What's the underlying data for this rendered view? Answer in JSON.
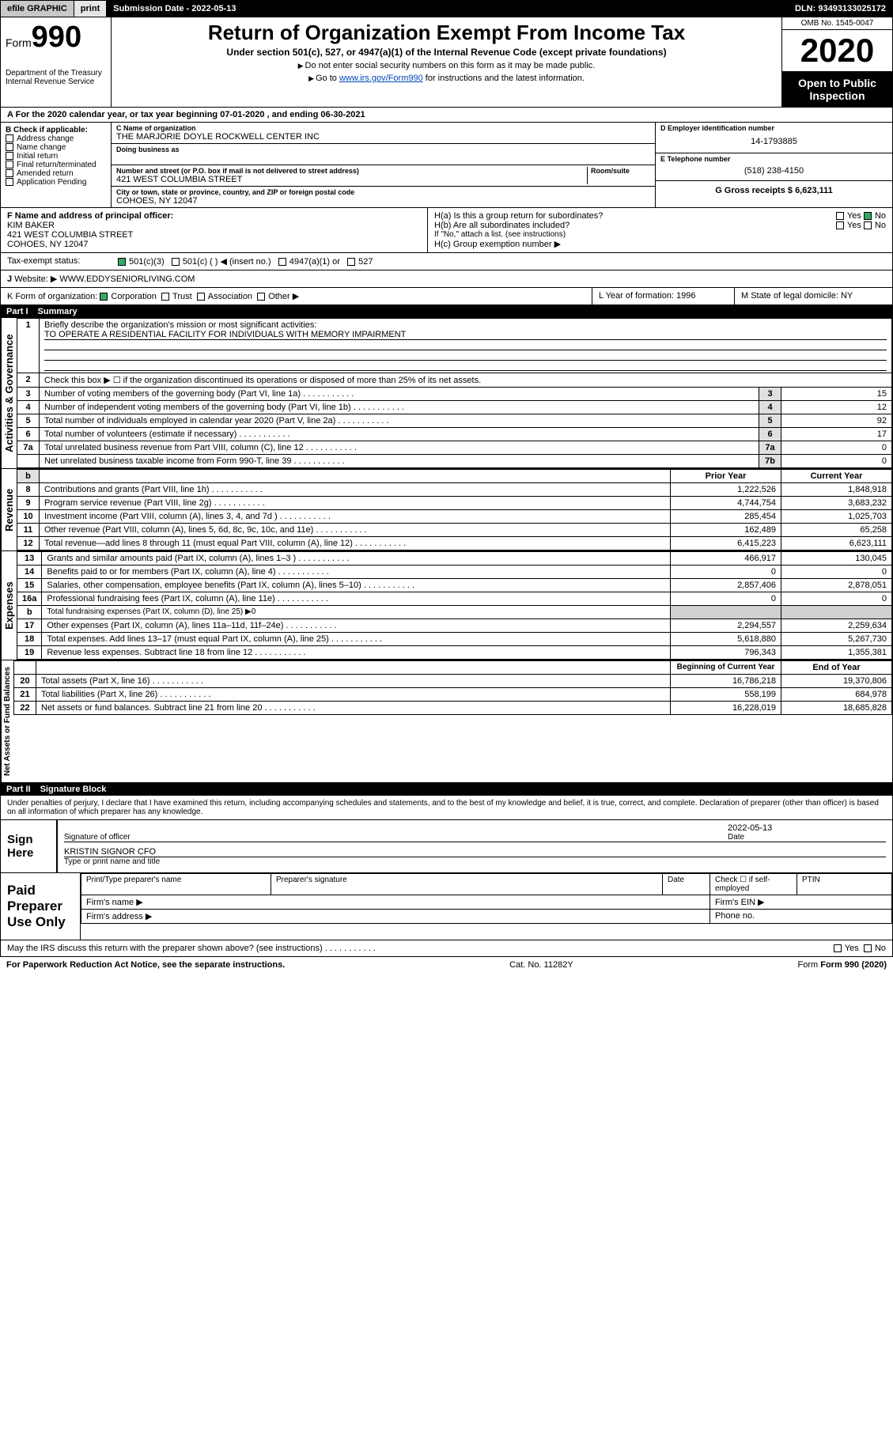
{
  "topbar": {
    "efile": "efile GRAPHIC",
    "print": "print",
    "subdate_label": "Submission Date - 2022-05-13",
    "dln": "DLN: 93493133025172"
  },
  "header": {
    "form_label": "Form",
    "form_number": "990",
    "dept": "Department of the Treasury",
    "irs": "Internal Revenue Service",
    "title": "Return of Organization Exempt From Income Tax",
    "subtitle": "Under section 501(c), 527, or 4947(a)(1) of the Internal Revenue Code (except private foundations)",
    "note1": "Do not enter social security numbers on this form as it may be made public.",
    "note2_pre": "Go to ",
    "note2_link": "www.irs.gov/Form990",
    "note2_post": " for instructions and the latest information.",
    "omb": "OMB No. 1545-0047",
    "year": "2020",
    "open_public": "Open to Public Inspection"
  },
  "period": {
    "text": "For the 2020 calendar year, or tax year beginning 07-01-2020   , and ending 06-30-2021"
  },
  "box_b": {
    "title": "B Check if applicable:",
    "items": [
      "Address change",
      "Name change",
      "Initial return",
      "Final return/terminated",
      "Amended return",
      "Application Pending"
    ]
  },
  "box_c": {
    "name_lbl": "C Name of organization",
    "name": "THE MARJORIE DOYLE ROCKWELL CENTER INC",
    "dba_lbl": "Doing business as",
    "addr_lbl": "Number and street (or P.O. box if mail is not delivered to street address)",
    "room_lbl": "Room/suite",
    "addr": "421 WEST COLUMBIA STREET",
    "city_lbl": "City or town, state or province, country, and ZIP or foreign postal code",
    "city": "COHOES, NY  12047"
  },
  "box_d": {
    "lbl": "D Employer identification number",
    "val": "14-1793885"
  },
  "box_e": {
    "lbl": "E Telephone number",
    "val": "(518) 238-4150"
  },
  "box_g": {
    "lbl": "G Gross receipts $ 6,623,111"
  },
  "box_f": {
    "lbl": "F  Name and address of principal officer:",
    "name": "KIM BAKER",
    "addr1": "421 WEST COLUMBIA STREET",
    "addr2": "COHOES, NY  12047"
  },
  "box_h": {
    "a": "H(a)  Is this a group return for subordinates?",
    "a_yes": "Yes",
    "a_no": "No",
    "b": "H(b)  Are all subordinates included?",
    "b_yes": "Yes",
    "b_no": "No",
    "b_note": "If \"No,\" attach a list. (see instructions)",
    "c": "H(c)  Group exemption number ▶"
  },
  "box_i": {
    "lbl": "Tax-exempt status:",
    "opts": [
      "501(c)(3)",
      "501(c) (   ) ◀ (insert no.)",
      "4947(a)(1) or",
      "527"
    ]
  },
  "box_j": {
    "lbl": "Website: ▶",
    "val": " WWW.EDDYSENIORLIVING.COM"
  },
  "box_k": {
    "lbl": "K Form of organization:",
    "opts": [
      "Corporation",
      "Trust",
      "Association",
      "Other ▶"
    ]
  },
  "box_l": {
    "lbl": "L Year of formation: 1996"
  },
  "box_m": {
    "lbl": "M State of legal domicile: NY"
  },
  "partI": {
    "label": "Part I",
    "title": "Summary"
  },
  "summary": {
    "q1": "Briefly describe the organization's mission or most significant activities:",
    "q1a": "TO OPERATE A RESIDENTIAL FACILITY FOR INDIVIDUALS WITH MEMORY IMPAIRMENT",
    "q2": "Check this box ▶ ☐  if the organization discontinued its operations or disposed of more than 25% of its net assets.",
    "rows_gov": [
      {
        "n": "3",
        "t": "Number of voting members of the governing body (Part VI, line 1a)",
        "b": "3",
        "v": "15"
      },
      {
        "n": "4",
        "t": "Number of independent voting members of the governing body (Part VI, line 1b)",
        "b": "4",
        "v": "12"
      },
      {
        "n": "5",
        "t": "Total number of individuals employed in calendar year 2020 (Part V, line 2a)",
        "b": "5",
        "v": "92"
      },
      {
        "n": "6",
        "t": "Total number of volunteers (estimate if necessary)",
        "b": "6",
        "v": "17"
      },
      {
        "n": "7a",
        "t": "Total unrelated business revenue from Part VIII, column (C), line 12",
        "b": "7a",
        "v": "0"
      },
      {
        "n": "",
        "t": "Net unrelated business taxable income from Form 990-T, line 39",
        "b": "7b",
        "v": "0"
      }
    ],
    "hdr_prior": "Prior Year",
    "hdr_curr": "Current Year",
    "rows_rev": [
      {
        "n": "8",
        "t": "Contributions and grants (Part VIII, line 1h)",
        "p": "1,222,526",
        "c": "1,848,918"
      },
      {
        "n": "9",
        "t": "Program service revenue (Part VIII, line 2g)",
        "p": "4,744,754",
        "c": "3,683,232"
      },
      {
        "n": "10",
        "t": "Investment income (Part VIII, column (A), lines 3, 4, and 7d )",
        "p": "285,454",
        "c": "1,025,703"
      },
      {
        "n": "11",
        "t": "Other revenue (Part VIII, column (A), lines 5, 6d, 8c, 9c, 10c, and 11e)",
        "p": "162,489",
        "c": "65,258"
      },
      {
        "n": "12",
        "t": "Total revenue—add lines 8 through 11 (must equal Part VIII, column (A), line 12)",
        "p": "6,415,223",
        "c": "6,623,111"
      }
    ],
    "rows_exp": [
      {
        "n": "13",
        "t": "Grants and similar amounts paid (Part IX, column (A), lines 1–3 )",
        "p": "466,917",
        "c": "130,045"
      },
      {
        "n": "14",
        "t": "Benefits paid to or for members (Part IX, column (A), line 4)",
        "p": "0",
        "c": "0"
      },
      {
        "n": "15",
        "t": "Salaries, other compensation, employee benefits (Part IX, column (A), lines 5–10)",
        "p": "2,857,406",
        "c": "2,878,051"
      },
      {
        "n": "16a",
        "t": "Professional fundraising fees (Part IX, column (A), line 11e)",
        "p": "0",
        "c": "0"
      },
      {
        "n": "b",
        "t": "Total fundraising expenses (Part IX, column (D), line 25) ▶0",
        "p": "",
        "c": "",
        "shade": true
      },
      {
        "n": "17",
        "t": "Other expenses (Part IX, column (A), lines 11a–11d, 11f–24e)",
        "p": "2,294,557",
        "c": "2,259,634"
      },
      {
        "n": "18",
        "t": "Total expenses. Add lines 13–17 (must equal Part IX, column (A), line 25)",
        "p": "5,618,880",
        "c": "5,267,730"
      },
      {
        "n": "19",
        "t": "Revenue less expenses. Subtract line 18 from line 12",
        "p": "796,343",
        "c": "1,355,381"
      }
    ],
    "hdr_beg": "Beginning of Current Year",
    "hdr_end": "End of Year",
    "rows_net": [
      {
        "n": "20",
        "t": "Total assets (Part X, line 16)",
        "p": "16,786,218",
        "c": "19,370,806"
      },
      {
        "n": "21",
        "t": "Total liabilities (Part X, line 26)",
        "p": "558,199",
        "c": "684,978"
      },
      {
        "n": "22",
        "t": "Net assets or fund balances. Subtract line 21 from line 20",
        "p": "16,228,019",
        "c": "18,685,828"
      }
    ]
  },
  "partII": {
    "label": "Part II",
    "title": "Signature Block"
  },
  "sig": {
    "penalty": "Under penalties of perjury, I declare that I have examined this return, including accompanying schedules and statements, and to the best of my knowledge and belief, it is true, correct, and complete. Declaration of preparer (other than officer) is based on all information of which preparer has any knowledge.",
    "sign_here": "Sign Here",
    "sig_officer": "Signature of officer",
    "date_lbl": "Date",
    "date_val": "2022-05-13",
    "name": "KRISTIN SIGNOR CFO",
    "name_lbl": "Type or print name and title",
    "paid": "Paid Preparer Use Only",
    "p_name": "Print/Type preparer's name",
    "p_sig": "Preparer's signature",
    "p_date": "Date",
    "p_check": "Check ☐ if self-employed",
    "ptin": "PTIN",
    "firm_name": "Firm's name    ▶",
    "firm_ein": "Firm's EIN ▶",
    "firm_addr": "Firm's address ▶",
    "phone": "Phone no.",
    "discuss": "May the IRS discuss this return with the preparer shown above? (see instructions)",
    "yes": "Yes",
    "no": "No"
  },
  "footer": {
    "pra": "For Paperwork Reduction Act Notice, see the separate instructions.",
    "cat": "Cat. No. 11282Y",
    "form": "Form 990 (2020)"
  },
  "side_labels": {
    "gov": "Activities & Governance",
    "rev": "Revenue",
    "exp": "Expenses",
    "net": "Net Assets or Fund Balances"
  }
}
